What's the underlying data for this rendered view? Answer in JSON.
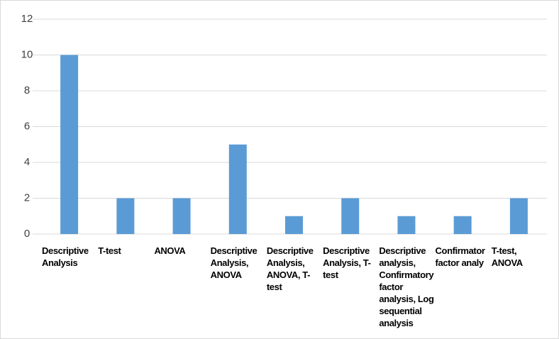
{
  "chart_data": {
    "type": "bar",
    "categories": [
      "Descriptive Analysis",
      "T-test",
      "ANOVA",
      "Descriptive Analysis, ANOVA",
      "Descriptive Analysis, ANOVA, T-test",
      "Descriptive Analysis, T-test",
      "Descriptive analysis, Confirmatory factor analysis, Log sequential analysis",
      "Confirmator factor analy",
      "T-test, ANOVA"
    ],
    "values": [
      10,
      2,
      2,
      5,
      1,
      2,
      1,
      1,
      2
    ],
    "color": "#5b9bd5",
    "ylim": [
      0,
      12
    ],
    "yticks": [
      0,
      2,
      4,
      6,
      8,
      10,
      12
    ],
    "grid": true
  }
}
